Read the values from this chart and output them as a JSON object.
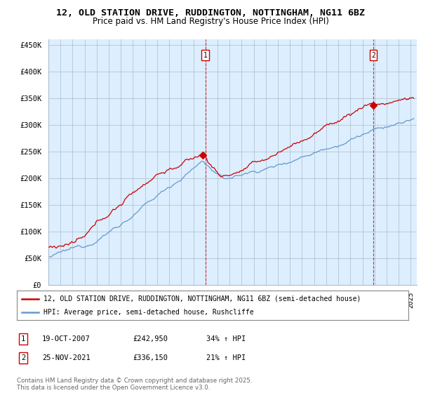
{
  "title": "12, OLD STATION DRIVE, RUDDINGTON, NOTTINGHAM, NG11 6BZ",
  "subtitle": "Price paid vs. HM Land Registry's House Price Index (HPI)",
  "ylabel_ticks": [
    "£0",
    "£50K",
    "£100K",
    "£150K",
    "£200K",
    "£250K",
    "£300K",
    "£350K",
    "£400K",
    "£450K"
  ],
  "ytick_values": [
    0,
    50000,
    100000,
    150000,
    200000,
    250000,
    300000,
    350000,
    400000,
    450000
  ],
  "ylim": [
    0,
    460000
  ],
  "xlim_start": 1995.0,
  "xlim_end": 2025.5,
  "marker1_x": 2008.0,
  "marker1_label": "1",
  "marker1_price": 242950,
  "marker2_x": 2021.9,
  "marker2_label": "2",
  "marker2_price": 336150,
  "line1_color": "#cc0000",
  "line2_color": "#6699cc",
  "chart_bg_color": "#ddeeff",
  "legend1_label": "12, OLD STATION DRIVE, RUDDINGTON, NOTTINGHAM, NG11 6BZ (semi-detached house)",
  "legend2_label": "HPI: Average price, semi-detached house, Rushcliffe",
  "table_row1": [
    "1",
    "19-OCT-2007",
    "£242,950",
    "34% ↑ HPI"
  ],
  "table_row2": [
    "2",
    "25-NOV-2021",
    "£336,150",
    "21% ↑ HPI"
  ],
  "footer": "Contains HM Land Registry data © Crown copyright and database right 2025.\nThis data is licensed under the Open Government Licence v3.0.",
  "bg_color": "#ffffff",
  "grid_color": "#aabbcc"
}
